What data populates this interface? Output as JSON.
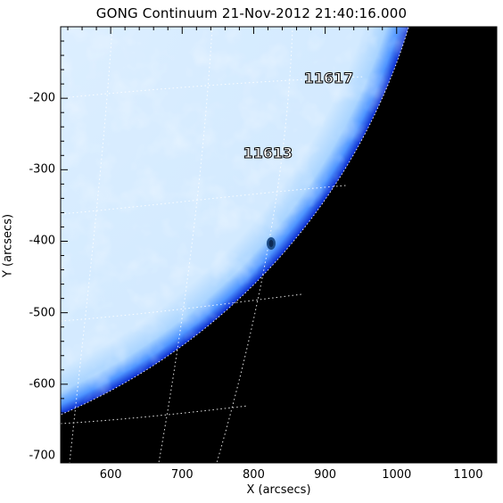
{
  "title": "GONG Continuum 21-Nov-2012 21:40:16.000",
  "x_axis": {
    "label": "X (arcsecs)",
    "range": [
      530,
      1140
    ],
    "ticks": [
      {
        "value": 600,
        "label": "600"
      },
      {
        "value": 700,
        "label": "700"
      },
      {
        "value": 800,
        "label": "800"
      },
      {
        "value": 900,
        "label": "900"
      },
      {
        "value": 1000,
        "label": "1000"
      },
      {
        "value": 1100,
        "label": "1100"
      }
    ]
  },
  "y_axis": {
    "label": "Y (arcsecs)",
    "range": [
      -710,
      -100
    ],
    "ticks": [
      {
        "value": -200,
        "label": "-200"
      },
      {
        "value": -300,
        "label": "-300"
      },
      {
        "value": -400,
        "label": "-400"
      },
      {
        "value": -500,
        "label": "-500"
      },
      {
        "value": -600,
        "label": "-600"
      },
      {
        "value": -700,
        "label": "-700"
      }
    ]
  },
  "regions": [
    {
      "label": "11617",
      "x": 905,
      "y": -172
    },
    {
      "label": "11613",
      "x": 820,
      "y": -277
    }
  ],
  "colors": {
    "disk": "#d6ecff",
    "limb": "#1a5cff",
    "background": "#000000",
    "sunspot": "#1f4f8a"
  }
}
